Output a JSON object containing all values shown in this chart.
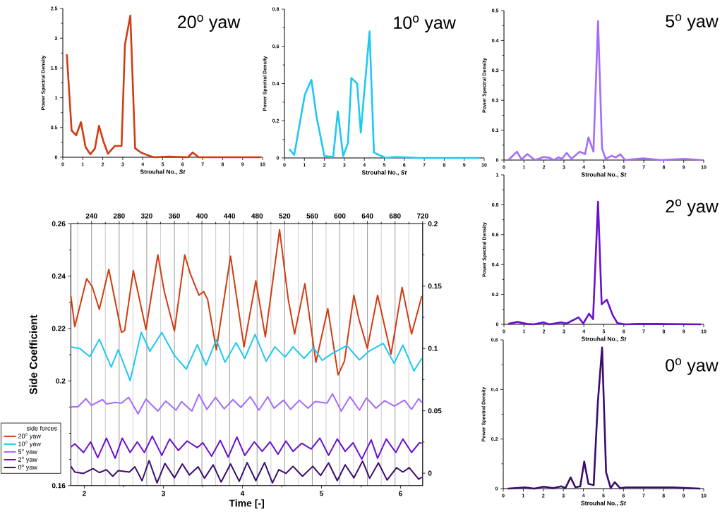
{
  "chart_data": [
    {
      "type": "line",
      "title": "20$^{o}$ yaw",
      "xlabel": "Strouhal No., *St*",
      "ylabel": "Power Spectral Density",
      "xlim": [
        0,
        10
      ],
      "ylim": [
        0,
        2.5
      ],
      "xticks": [
        0,
        1,
        2,
        3,
        4,
        5,
        6,
        7,
        8,
        9,
        10
      ],
      "yticks": [
        0,
        {
          "value": 0.25,
          "label": null
        },
        0.5,
        {
          "value": 0.75,
          "label": null
        },
        1,
        {
          "value": 1.25,
          "label": null
        },
        1.5,
        {
          "value": 1.75,
          "label": null
        },
        2,
        {
          "value": 2.25,
          "label": null
        },
        2.5
      ],
      "series": [
        {
          "color": "#d03c12",
          "x": [
            0.2,
            0.44,
            0.67,
            0.91,
            1.14,
            1.38,
            1.61,
            1.81,
            2.03,
            2.26,
            2.61,
            2.94,
            3.11,
            3.38,
            3.62,
            3.91,
            4.2,
            4.56,
            5.32,
            6.27,
            6.5,
            6.8,
            9.92
          ],
          "values": [
            1.73,
            0.45,
            0.37,
            0.59,
            0.17,
            0.05,
            0.15,
            0.53,
            0.27,
            0.06,
            0.19,
            0.19,
            1.89,
            2.38,
            0.15,
            0.08,
            0.04,
            0,
            0.01,
            0,
            0.08,
            0,
            0
          ]
        }
      ]
    },
    {
      "type": "line",
      "title": "10$^{o}$ yaw",
      "xlabel": "Strouhal No., *St*",
      "ylabel": "Power Spectral Density",
      "xlim": [
        0,
        10
      ],
      "ylim": [
        0,
        0.8
      ],
      "xticks": [
        0,
        1,
        2,
        3,
        4,
        5,
        6,
        7,
        8,
        9,
        10
      ],
      "yticks": [
        0,
        {
          "value": 0.1,
          "label": null
        },
        0.2,
        {
          "value": 0.3,
          "label": null
        },
        0.4,
        {
          "value": 0.5,
          "label": null
        },
        0.6,
        {
          "value": 0.7,
          "label": null
        },
        0.8
      ],
      "series": [
        {
          "color": "#1fc8f2",
          "x": [
            0.24,
            0.49,
            1.02,
            1.35,
            1.61,
            2.0,
            2.44,
            2.67,
            2.94,
            3.18,
            3.35,
            3.64,
            3.82,
            4.26,
            4.48,
            4.73,
            5.09,
            5.56,
            6.74,
            9.74
          ],
          "values": [
            0.048,
            0.016,
            0.34,
            0.42,
            0.22,
            0.01,
            0.006,
            0.25,
            0.01,
            0.08,
            0.43,
            0.4,
            0.136,
            0.68,
            0.03,
            0.016,
            0,
            0.006,
            0,
            0
          ]
        }
      ]
    },
    {
      "type": "line",
      "title": "5$^{o}$ yaw",
      "xlabel": "Strouhal No., *St*",
      "ylabel": "Power Spectral Density",
      "xlim": [
        0,
        10
      ],
      "ylim": [
        0,
        0.5
      ],
      "xticks": [
        0,
        1,
        2,
        3,
        4,
        5,
        6,
        7,
        8,
        9,
        10
      ],
      "yticks": [
        0,
        {
          "value": 0.05,
          "label": null
        },
        0.1,
        {
          "value": 0.15,
          "label": null
        },
        0.2,
        {
          "value": 0.25,
          "label": null
        },
        0.3,
        {
          "value": 0.35,
          "label": null
        },
        0.4,
        {
          "value": 0.45,
          "label": null
        },
        0.5
      ],
      "series": [
        {
          "color": "#a46cfa",
          "x": [
            0.22,
            0.65,
            0.88,
            1.17,
            1.55,
            1.97,
            2.26,
            2.5,
            2.73,
            2.91,
            3.14,
            3.38,
            3.79,
            4.06,
            4.23,
            4.48,
            4.71,
            4.91,
            5.09,
            5.38,
            5.6,
            5.83,
            6.07,
            6.97,
            7.86,
            9.03,
            9.86
          ],
          "values": [
            0,
            0.028,
            0.002,
            0.02,
            0,
            0.01,
            0.008,
            0,
            0.009,
            0.004,
            0.024,
            0.004,
            0.028,
            0.02,
            0.076,
            0.028,
            0.465,
            0.039,
            0.004,
            0.014,
            0.009,
            0.019,
            0,
            0.006,
            0,
            0.004,
            0
          ]
        }
      ]
    },
    {
      "type": "line",
      "xlabel": "Time [-]",
      "ylabel": "Side Coefficient",
      "legend_title": "side forces",
      "legend": "bottom left",
      "grid": "x",
      "xlim": [
        1.83,
        6.28
      ],
      "ylim": [
        0.16,
        0.26
      ],
      "x2lim": [
        210,
        720
      ],
      "y2lim": [
        -0.01,
        0.2
      ],
      "xticks": [
        2,
        {
          "value": 2.5,
          "label": null
        },
        3,
        {
          "value": 3.5,
          "label": null
        },
        4,
        {
          "value": 4.5,
          "label": null
        },
        5,
        {
          "value": 5.5,
          "label": null
        },
        6
      ],
      "x2ticks": [
        {
          "value": 220,
          "label": null
        },
        240,
        {
          "value": 260,
          "label": null
        },
        280,
        {
          "value": 300,
          "label": null
        },
        320,
        {
          "value": 340,
          "label": null
        },
        360,
        {
          "value": 380,
          "label": null
        },
        400,
        {
          "value": 420,
          "label": null
        },
        440,
        {
          "value": 460,
          "label": null
        },
        480,
        {
          "value": 500,
          "label": null
        },
        520,
        {
          "value": 540,
          "label": null
        },
        560,
        {
          "value": 580,
          "label": null
        },
        600,
        {
          "value": 620,
          "label": null
        },
        640,
        {
          "value": 660,
          "label": null
        },
        680,
        {
          "value": 700,
          "label": null
        },
        720
      ],
      "yticks": [
        0.16,
        {
          "value": 0.17,
          "label": null
        },
        {
          "value": 0.18,
          "label": null
        },
        {
          "value": 0.19,
          "label": null
        },
        0.2,
        {
          "value": 0.21,
          "label": null
        },
        0.22,
        {
          "value": 0.23,
          "label": null
        },
        0.24,
        {
          "value": 0.25,
          "label": null
        },
        0.26
      ],
      "y2ticks": [
        0,
        {
          "value": 0.025,
          "label": null
        },
        0.05,
        {
          "value": 0.075,
          "label": null
        },
        0.1,
        {
          "value": 0.125,
          "label": null
        },
        0.15,
        {
          "value": 0.175,
          "label": null
        },
        0.2
      ],
      "series": [
        {
          "name": "20$^{o}$ yaw",
          "color": "#d03c12",
          "x": [
            1.83,
            1.88,
            2.03,
            2.1,
            2.19,
            2.31,
            2.47,
            2.51,
            2.62,
            2.78,
            2.93,
            3.01,
            3.14,
            3.27,
            3.34,
            3.45,
            3.51,
            3.56,
            3.67,
            3.85,
            4.02,
            4.17,
            4.29,
            4.47,
            4.58,
            4.66,
            4.79,
            4.93,
            5.08,
            5.21,
            5.29,
            5.41,
            5.47,
            5.58,
            5.71,
            5.88,
            6.02,
            6.14,
            6.27
          ],
          "values": [
            0.2324,
            0.2207,
            0.239,
            0.236,
            0.2273,
            0.2426,
            0.2185,
            0.2192,
            0.2421,
            0.2196,
            0.2481,
            0.2344,
            0.219,
            0.2481,
            0.241,
            0.2327,
            0.2341,
            0.2311,
            0.2119,
            0.2476,
            0.213,
            0.2382,
            0.2168,
            0.2577,
            0.2311,
            0.2179,
            0.2371,
            0.2071,
            0.2276,
            0.2023,
            0.2075,
            0.2327,
            0.224,
            0.2124,
            0.2327,
            0.2102,
            0.2357,
            0.2179,
            0.2324
          ]
        },
        {
          "name": "10$^{o}$ yaw",
          "color": "#1fc8f2",
          "x": [
            1.83,
            1.94,
            2.07,
            2.19,
            2.34,
            2.43,
            2.58,
            2.72,
            2.83,
            2.98,
            3.14,
            3.29,
            3.43,
            3.54,
            3.67,
            3.78,
            3.92,
            4.03,
            4.16,
            4.3,
            4.41,
            4.54,
            4.64,
            4.78,
            4.9,
            5.01,
            5.12,
            5.32,
            5.48,
            5.6,
            5.78,
            5.92,
            6.03,
            6.17,
            6.27
          ],
          "values": [
            0.213,
            0.2124,
            0.2093,
            0.2159,
            0.2053,
            0.2119,
            0.2001,
            0.2185,
            0.2113,
            0.2185,
            0.2097,
            0.2045,
            0.2138,
            0.206,
            0.2157,
            0.2071,
            0.2146,
            0.2086,
            0.2177,
            0.2075,
            0.213,
            0.2091,
            0.213,
            0.2086,
            0.2126,
            0.2078,
            0.2102,
            0.2135,
            0.208,
            0.2113,
            0.2143,
            0.2067,
            0.2137,
            0.2038,
            0.2086
          ]
        },
        {
          "name": "5$^{o}$ yaw",
          "color": "#a46cfa",
          "axis": "y2",
          "x": [
            1.83,
            1.92,
            2.02,
            2.09,
            2.23,
            2.28,
            2.39,
            2.47,
            2.56,
            2.68,
            2.78,
            2.93,
            3.03,
            3.16,
            3.23,
            3.36,
            3.45,
            3.55,
            3.66,
            3.77,
            3.88,
            3.98,
            4.1,
            4.21,
            4.32,
            4.4,
            4.52,
            4.61,
            4.72,
            4.83,
            4.92,
            5.07,
            5.14,
            5.25,
            5.36,
            5.48,
            5.57,
            5.69,
            5.8,
            5.92,
            6.05,
            6.14,
            6.23,
            6.27
          ],
          "values": [
            0.0532,
            0.0532,
            0.0597,
            0.0544,
            0.059,
            0.0555,
            0.0567,
            0.0562,
            0.0608,
            0.0475,
            0.0594,
            0.0498,
            0.0578,
            0.0505,
            0.0574,
            0.0498,
            0.0631,
            0.0512,
            0.0608,
            0.0516,
            0.059,
            0.0528,
            0.0613,
            0.0505,
            0.0613,
            0.0521,
            0.0585,
            0.0512,
            0.0585,
            0.0521,
            0.0574,
            0.0562,
            0.0636,
            0.0498,
            0.0613,
            0.0505,
            0.0604,
            0.0521,
            0.0581,
            0.0539,
            0.0585,
            0.0512,
            0.0597,
            0.0567
          ]
        },
        {
          "name": "2$^{o}$ yaw",
          "color": "#6a10d0",
          "axis": "y2",
          "x": [
            1.83,
            1.88,
            1.99,
            2.08,
            2.17,
            2.28,
            2.39,
            2.48,
            2.58,
            2.67,
            2.76,
            2.86,
            2.98,
            3.08,
            3.19,
            3.3,
            3.43,
            3.5,
            3.61,
            3.72,
            3.82,
            3.93,
            4.03,
            4.15,
            4.25,
            4.35,
            4.45,
            4.55,
            4.64,
            4.75,
            4.87,
            4.98,
            5.09,
            5.2,
            5.3,
            5.4,
            5.51,
            5.63,
            5.71,
            5.82,
            5.94,
            6.03,
            6.14,
            6.24,
            6.27
          ],
          "values": [
            0.021,
            0.0235,
            0.0166,
            0.0251,
            0.0124,
            0.0281,
            0.012,
            0.0281,
            0.0166,
            0.0251,
            0.0166,
            0.0297,
            0.0143,
            0.0274,
            0.0182,
            0.0258,
            0.0205,
            0.0244,
            0.0136,
            0.0263,
            0.0129,
            0.029,
            0.0143,
            0.0251,
            0.0175,
            0.0251,
            0.0152,
            0.0258,
            0.0175,
            0.024,
            0.0194,
            0.0281,
            0.0143,
            0.0274,
            0.0175,
            0.0244,
            0.0113,
            0.0267,
            0.012,
            0.0274,
            0.0166,
            0.0274,
            0.0166,
            0.0244,
            0.024
          ]
        },
        {
          "name": "0$^{o}$ yaw",
          "color": "#3c0c6e",
          "axis": "y2",
          "x": [
            1.83,
            1.88,
            1.99,
            2.11,
            2.19,
            2.28,
            2.36,
            2.43,
            2.57,
            2.64,
            2.73,
            2.82,
            2.92,
            3.02,
            3.14,
            3.24,
            3.33,
            3.44,
            3.52,
            3.63,
            3.73,
            3.85,
            3.96,
            4.06,
            4.17,
            4.28,
            4.38,
            4.46,
            4.55,
            4.64,
            4.76,
            4.89,
            4.99,
            5.09,
            5.2,
            5.3,
            5.41,
            5.52,
            5.61,
            5.72,
            5.83,
            5.95,
            6.03,
            6.11,
            6.23,
            6.27
          ],
          "values": [
            0.0055,
            0.0009,
            -0.0002,
            0.0037,
            0.0005,
            0.0028,
            -0.0025,
            0.0021,
            0.0009,
            0.0051,
            -0.006,
            0.0101,
            -0.0078,
            0.0078,
            -0.0037,
            0.0074,
            -0.0014,
            0.0051,
            -0.0041,
            0.0067,
            -0.0071,
            0.0074,
            -0.0065,
            0.0085,
            -0.006,
            0.0085,
            -0.0078,
            0.0028,
            -0.0002,
            0.0055,
            -0.0025,
            0.0055,
            -0.0018,
            0.0083,
            -0.006,
            0.0067,
            -0.0037,
            0.0097,
            -0.0041,
            0.0083,
            -0.0055,
            0.0044,
            0.0009,
            0.0044,
            -0.0048,
            -0.0032
          ]
        }
      ]
    },
    {
      "type": "line",
      "title": "2$^{o}$ yaw",
      "xlabel": "Strouhal No., *St*",
      "ylabel": "Power Spectral Density",
      "xlim": [
        0,
        10
      ],
      "ylim": [
        0,
        1
      ],
      "xticks": [
        0,
        1,
        2,
        3,
        4,
        5,
        6,
        7,
        8,
        9,
        10
      ],
      "yticks": [
        0,
        {
          "value": 0.1,
          "label": null
        },
        0.2,
        {
          "value": 0.3,
          "label": null
        },
        0.4,
        {
          "value": 0.5,
          "label": null
        },
        0.6,
        {
          "value": 0.7,
          "label": null
        },
        0.8,
        {
          "value": 0.9,
          "label": null
        },
        1
      ],
      "series": [
        {
          "color": "#6a10d0",
          "x": [
            0.22,
            0.67,
            1.14,
            1.5,
            1.97,
            2.26,
            2.85,
            3.14,
            3.73,
            3.97,
            4.26,
            4.46,
            4.71,
            4.89,
            5.15,
            5.44,
            5.68,
            6.09,
            6.68,
            7.62,
            9.86
          ],
          "values": [
            0.003,
            0.016,
            0.003,
            0,
            0.013,
            0,
            0.013,
            0.006,
            0.047,
            0.006,
            0.071,
            0.035,
            0.82,
            0.134,
            0.165,
            0.063,
            0.008,
            0,
            0.003,
            0.003,
            0
          ]
        }
      ]
    },
    {
      "type": "line",
      "title": "0$^{o}$ yaw",
      "xlabel": "Strouhal No., *St*",
      "ylabel": "Power Spectral Density",
      "xlim": [
        0,
        10
      ],
      "ylim": [
        0,
        0.6
      ],
      "xticks": [
        0,
        1,
        2,
        3,
        4,
        5,
        6,
        7,
        8,
        9,
        10
      ],
      "yticks": [
        0,
        {
          "value": 0.1,
          "label": null
        },
        0.2,
        {
          "value": 0.3,
          "label": null
        },
        0.4,
        {
          "value": 0.5,
          "label": null
        },
        0.6
      ],
      "series": [
        {
          "color": "#3c0c6e",
          "x": [
            0.23,
            1.08,
            1.55,
            2.02,
            2.49,
            2.9,
            3.1,
            3.36,
            3.6,
            3.84,
            4.04,
            4.25,
            4.51,
            4.72,
            4.93,
            5.13,
            5.36,
            5.56,
            5.83,
            6.13,
            6.71,
            8.47,
            9.82
          ],
          "values": [
            0,
            0.005,
            0,
            0.008,
            0.002,
            0.009,
            0.002,
            0.045,
            0.005,
            0.009,
            0.109,
            0.019,
            0.014,
            0.35,
            0.569,
            0.066,
            0.002,
            0.026,
            0.002,
            0.005,
            0.005,
            0.005,
            0
          ]
        }
      ]
    }
  ]
}
